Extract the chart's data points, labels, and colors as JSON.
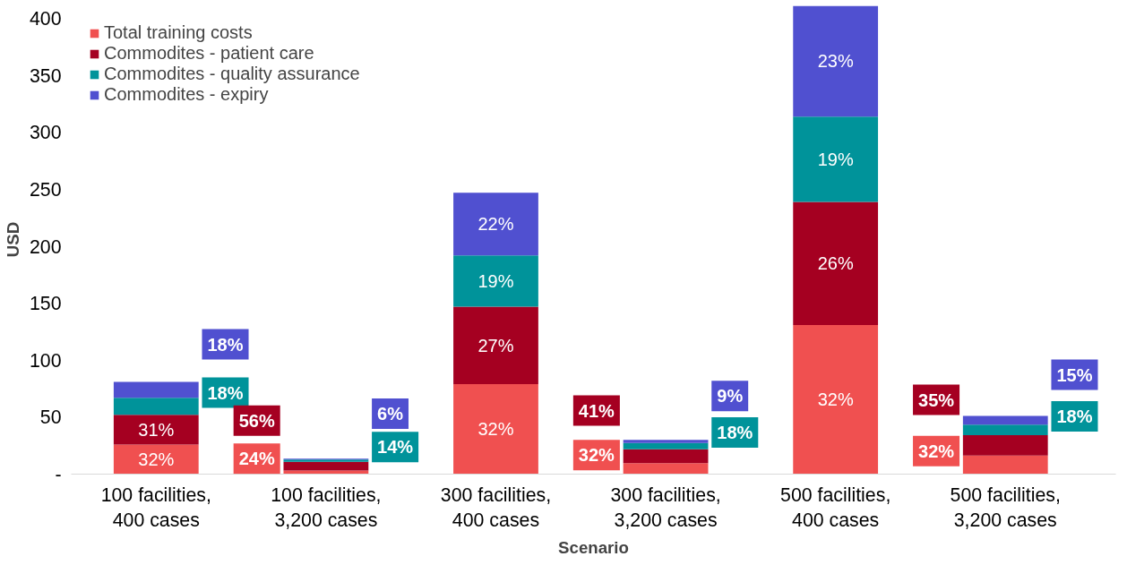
{
  "chart_data": {
    "type": "bar",
    "stacked": true,
    "xlabel": "Scenario",
    "ylabel": "USD",
    "categories": [
      "100 facilities,\n400 cases",
      "100 facilities,\n3,200 cases",
      "300 facilities,\n400 cases",
      "300 facilities,\n3,200 cases",
      "500 facilities,\n400 cases",
      "500 facilities,\n3,200 cases"
    ],
    "series": [
      {
        "name": "Total training costs",
        "color": "#f05050",
        "values": [
          26,
          3.2,
          79,
          9.6,
          131,
          16.3
        ]
      },
      {
        "name": "Commodites - patient care",
        "color": "#a50021",
        "values": [
          26,
          7.6,
          68,
          12.3,
          108,
          17.9
        ]
      },
      {
        "name": "Commodites - quality assurance",
        "color": "#00939a",
        "values": [
          15,
          1.9,
          45,
          5.4,
          75,
          9.2
        ]
      },
      {
        "name": "Commodites - expiry",
        "color": "#5050d0",
        "values": [
          14,
          0.8,
          55,
          2.7,
          97,
          7.7
        ]
      }
    ],
    "annotations": [
      "32%",
      "31%",
      "18%",
      "18%",
      "24%",
      "56%",
      "14%",
      "6%",
      "32%",
      "27%",
      "19%",
      "22%",
      "32%",
      "41%",
      "18%",
      "9%",
      "32%",
      "26%",
      "19%",
      "23%",
      "32%",
      "35%",
      "18%",
      "15%"
    ],
    "ylim": [
      0,
      412
    ],
    "yticks": [
      {
        "value": 0,
        "label": "-"
      },
      50,
      100,
      150,
      200,
      250,
      300,
      350,
      400
    ],
    "grid": false,
    "legend": "top left"
  }
}
